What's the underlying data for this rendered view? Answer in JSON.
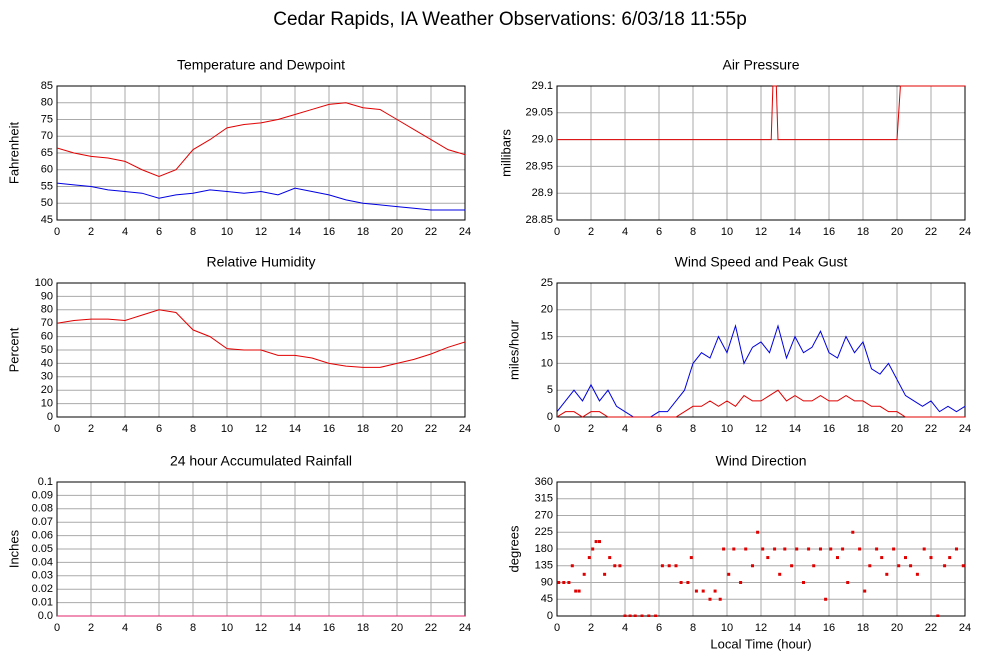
{
  "title": "Cedar Rapids, IA Weather Observations: 6/03/18 11:55p",
  "x_label": "Local Time (hour)",
  "chart_data": [
    {
      "type": "line",
      "title": "Temperature and Dewpoint",
      "y_label": "Fahrenheit",
      "x": [
        0,
        1,
        2,
        3,
        4,
        5,
        6,
        7,
        8,
        9,
        10,
        11,
        12,
        13,
        14,
        15,
        16,
        17,
        18,
        19,
        20,
        21,
        22,
        23,
        24
      ],
      "series": [
        {
          "color": "#e00000",
          "values": [
            66.5,
            65,
            64,
            63.5,
            62.5,
            60,
            58,
            60,
            66,
            69,
            72.5,
            73.5,
            74,
            75,
            76.5,
            78,
            79.5,
            80,
            78.5,
            78,
            75,
            72,
            69,
            66,
            64.5
          ]
        },
        {
          "color": "#0000e0",
          "values": [
            56,
            55.5,
            55,
            54,
            53.5,
            53,
            51.5,
            52.5,
            53,
            54,
            53.5,
            53,
            53.5,
            52.5,
            54.5,
            53.5,
            52.5,
            51,
            50,
            49.5,
            49,
            48.5,
            48,
            48,
            48
          ]
        }
      ],
      "xlim": [
        0,
        24
      ],
      "xticks": [
        0,
        2,
        4,
        6,
        8,
        10,
        12,
        14,
        16,
        18,
        20,
        22,
        24
      ],
      "ylim": [
        45,
        85
      ],
      "yticks": [
        45,
        50,
        55,
        60,
        65,
        70,
        75,
        80,
        85
      ],
      "grid": true
    },
    {
      "type": "line",
      "title": "Air Pressure",
      "y_label": "millibars",
      "x": [
        0,
        12.6,
        12.7,
        12.9,
        13.0,
        20.0,
        20.2,
        24
      ],
      "series": [
        {
          "color": "#e00000",
          "values": [
            29.0,
            29.0,
            29.1,
            29.1,
            29.0,
            29.0,
            29.1,
            29.1
          ]
        }
      ],
      "xlim": [
        0,
        24
      ],
      "xticks": [
        0,
        2,
        4,
        6,
        8,
        10,
        12,
        14,
        16,
        18,
        20,
        22,
        24
      ],
      "ylim": [
        28.85,
        29.1
      ],
      "yticks": [
        28.85,
        28.9,
        28.95,
        {
          "value": 29,
          "label": "29.0"
        },
        29.05,
        29.1
      ],
      "grid": true
    },
    {
      "type": "line",
      "title": "Relative Humidity",
      "y_label": "Percent",
      "x": [
        0,
        1,
        2,
        3,
        4,
        5,
        6,
        7,
        8,
        9,
        10,
        11,
        12,
        13,
        14,
        15,
        16,
        17,
        18,
        19,
        20,
        21,
        22,
        23,
        24
      ],
      "series": [
        {
          "color": "#e00000",
          "values": [
            70,
            72,
            73,
            73,
            72,
            76,
            80,
            78,
            65,
            60,
            51,
            50,
            50,
            46,
            46,
            44,
            40,
            38,
            37,
            37,
            40,
            43,
            47,
            52,
            56
          ]
        }
      ],
      "xlim": [
        0,
        24
      ],
      "xticks": [
        0,
        2,
        4,
        6,
        8,
        10,
        12,
        14,
        16,
        18,
        20,
        22,
        24
      ],
      "ylim": [
        0,
        100
      ],
      "yticks": [
        0,
        10,
        20,
        30,
        40,
        50,
        60,
        70,
        80,
        90,
        100
      ],
      "grid": true
    },
    {
      "type": "line",
      "title": "Wind Speed and Peak Gust",
      "y_label": "miles/hour",
      "x": [
        0,
        0.5,
        1,
        1.5,
        2,
        2.5,
        3,
        3.5,
        4,
        4.5,
        5,
        5.5,
        6,
        6.5,
        7,
        7.5,
        8,
        8.5,
        9,
        9.5,
        10,
        10.5,
        11,
        11.5,
        12,
        12.5,
        13,
        13.5,
        14,
        14.5,
        15,
        15.5,
        16,
        16.5,
        17,
        17.5,
        18,
        18.5,
        19,
        19.5,
        20,
        20.5,
        21,
        21.5,
        22,
        22.5,
        23,
        23.5,
        24
      ],
      "series": [
        {
          "color": "#0000e0",
          "values": [
            1,
            3,
            5,
            3,
            6,
            3,
            5,
            2,
            1,
            0,
            0,
            0,
            1,
            1,
            3,
            5,
            10,
            12,
            11,
            15,
            12,
            17,
            10,
            13,
            14,
            12,
            17,
            11,
            15,
            12,
            13,
            16,
            12,
            11,
            15,
            12,
            14,
            9,
            8,
            10,
            7,
            4,
            3,
            2,
            3,
            1,
            2,
            1,
            2
          ]
        },
        {
          "color": "#e00000",
          "values": [
            0,
            1,
            1,
            0,
            1,
            1,
            0,
            0,
            0,
            0,
            0,
            0,
            0,
            0,
            0,
            1,
            2,
            2,
            3,
            2,
            3,
            2,
            4,
            3,
            3,
            4,
            5,
            3,
            4,
            3,
            3,
            4,
            3,
            3,
            4,
            3,
            3,
            2,
            2,
            1,
            1,
            0,
            0,
            0,
            0,
            0,
            0,
            0,
            0
          ]
        }
      ],
      "xlim": [
        0,
        24
      ],
      "xticks": [
        0,
        2,
        4,
        6,
        8,
        10,
        12,
        14,
        16,
        18,
        20,
        22,
        24
      ],
      "ylim": [
        0,
        25
      ],
      "yticks": [
        0,
        5,
        10,
        15,
        20,
        25
      ],
      "grid": true
    },
    {
      "type": "line",
      "title": "24 hour Accumulated Rainfall",
      "y_label": "Inches",
      "x": [
        0,
        24
      ],
      "series": [
        {
          "color": "#e0206a",
          "values": [
            0,
            0
          ]
        }
      ],
      "xlim": [
        0,
        24
      ],
      "xticks": [
        0,
        2,
        4,
        6,
        8,
        10,
        12,
        14,
        16,
        18,
        20,
        22,
        24
      ],
      "ylim": [
        0,
        0.1
      ],
      "yticks": [
        {
          "value": 0,
          "label": "0.0"
        },
        0.01,
        0.02,
        0.03,
        0.04,
        0.05,
        0.06,
        0.07,
        0.08,
        0.09,
        0.1
      ],
      "grid": true
    },
    {
      "type": "scatter",
      "title": "Wind Direction",
      "y_label": "degrees",
      "x": [
        0.1,
        0.4,
        0.7,
        0.9,
        1.1,
        1.3,
        1.6,
        1.9,
        2.1,
        2.3,
        2.5,
        2.8,
        3.1,
        3.4,
        3.7,
        4.0,
        4.3,
        4.6,
        5.0,
        5.4,
        5.8,
        6.2,
        6.6,
        7.0,
        7.3,
        7.7,
        7.9,
        8.2,
        8.6,
        9.0,
        9.3,
        9.6,
        9.8,
        10.1,
        10.4,
        10.8,
        11.1,
        11.5,
        11.8,
        12.1,
        12.4,
        12.8,
        13.1,
        13.4,
        13.8,
        14.1,
        14.5,
        14.8,
        15.1,
        15.5,
        15.8,
        16.1,
        16.5,
        16.8,
        17.1,
        17.4,
        17.8,
        18.1,
        18.4,
        18.8,
        19.1,
        19.4,
        19.8,
        20.1,
        20.5,
        20.8,
        21.2,
        21.6,
        22.0,
        22.4,
        22.8,
        23.1,
        23.5,
        23.9
      ],
      "series": [
        {
          "color": "#e00000",
          "values": [
            90,
            90,
            90,
            135,
            67,
            67,
            112,
            157,
            180,
            200,
            200,
            112,
            157,
            135,
            135,
            0,
            0,
            0,
            0,
            0,
            0,
            135,
            135,
            135,
            90,
            90,
            157,
            67,
            67,
            45,
            67,
            45,
            180,
            112,
            180,
            90,
            180,
            135,
            225,
            180,
            157,
            180,
            112,
            180,
            135,
            180,
            90,
            180,
            135,
            180,
            45,
            180,
            157,
            180,
            90,
            225,
            180,
            67,
            135,
            180,
            157,
            112,
            180,
            135,
            157,
            135,
            112,
            180,
            157,
            0,
            135,
            157,
            180,
            135
          ]
        }
      ],
      "xlim": [
        0,
        24
      ],
      "xticks": [
        0,
        2,
        4,
        6,
        8,
        10,
        12,
        14,
        16,
        18,
        20,
        22,
        24
      ],
      "ylim": [
        0,
        360
      ],
      "yticks": [
        0,
        45,
        90,
        135,
        180,
        225,
        270,
        315,
        360
      ],
      "grid": true
    }
  ]
}
